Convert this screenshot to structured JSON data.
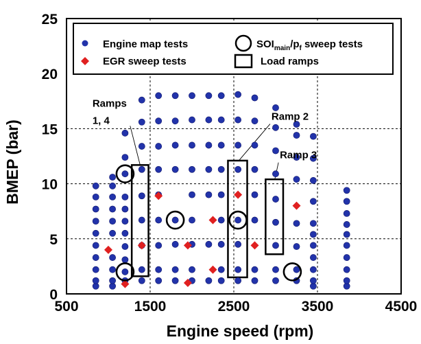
{
  "chart_data": {
    "type": "scatter",
    "title": "",
    "xlabel": "Engine speed (rpm)",
    "ylabel": "BMEP (bar)",
    "xlim": [
      500,
      4500
    ],
    "ylim": [
      0,
      25
    ],
    "x_ticks": [
      "500",
      "1500",
      "2500",
      "3500",
      "4500"
    ],
    "y_ticks": [
      "0",
      "5",
      "10",
      "15",
      "20",
      "25"
    ],
    "grid": "dotted at x=1500, 2500, 3500 and y=5, 10, 15 inside the plot",
    "legend_position": "top",
    "colors": {
      "engine_map": "#2233aa",
      "egr": "#e02020",
      "frame": "#000000"
    },
    "legend": {
      "engine_map": "Engine map tests",
      "egr": "EGR sweep tests",
      "sweep_main": "SOI",
      "sweep_sub": "main",
      "sweep_rest": "/p",
      "sweep_sub2": "f",
      "sweep_tail": " sweep tests",
      "ramps": "Load ramps"
    },
    "series": [
      {
        "name": "Engine map tests",
        "marker": "circle",
        "points": [
          [
            850,
            0.7
          ],
          [
            850,
            1.2
          ],
          [
            850,
            2.2
          ],
          [
            850,
            3.3
          ],
          [
            850,
            4.4
          ],
          [
            850,
            5.5
          ],
          [
            850,
            6.6
          ],
          [
            850,
            7.7
          ],
          [
            850,
            8.8
          ],
          [
            850,
            9.8
          ],
          [
            1050,
            0.7
          ],
          [
            1050,
            1.2
          ],
          [
            1050,
            2.2
          ],
          [
            1050,
            3.3
          ],
          [
            1050,
            5.5
          ],
          [
            1050,
            6.6
          ],
          [
            1050,
            7.7
          ],
          [
            1050,
            8.8
          ],
          [
            1050,
            9.8
          ],
          [
            1050,
            10.6
          ],
          [
            1200,
            1.2
          ],
          [
            1200,
            2.0
          ],
          [
            1200,
            3.1
          ],
          [
            1200,
            4.3
          ],
          [
            1200,
            5.5
          ],
          [
            1200,
            6.6
          ],
          [
            1200,
            7.7
          ],
          [
            1200,
            8.8
          ],
          [
            1200,
            10.9
          ],
          [
            1200,
            12.4
          ],
          [
            1200,
            14.6
          ],
          [
            1400,
            1.2
          ],
          [
            1400,
            2.2
          ],
          [
            1400,
            4.4
          ],
          [
            1400,
            6.7
          ],
          [
            1400,
            8.9
          ],
          [
            1400,
            11.3
          ],
          [
            1400,
            13.4
          ],
          [
            1400,
            15.6
          ],
          [
            1400,
            17.6
          ],
          [
            1600,
            1.2
          ],
          [
            1600,
            2.2
          ],
          [
            1600,
            4.4
          ],
          [
            1600,
            6.7
          ],
          [
            1600,
            9.0
          ],
          [
            1600,
            11.3
          ],
          [
            1600,
            13.4
          ],
          [
            1600,
            15.7
          ],
          [
            1600,
            18.0
          ],
          [
            1800,
            1.2
          ],
          [
            1800,
            2.2
          ],
          [
            1800,
            4.5
          ],
          [
            1800,
            6.7
          ],
          [
            1800,
            11.3
          ],
          [
            1800,
            13.5
          ],
          [
            1800,
            15.7
          ],
          [
            1800,
            18.0
          ],
          [
            2000,
            1.2
          ],
          [
            2000,
            2.2
          ],
          [
            2000,
            4.5
          ],
          [
            2000,
            6.7
          ],
          [
            2000,
            9.0
          ],
          [
            2000,
            11.3
          ],
          [
            2000,
            13.5
          ],
          [
            2000,
            15.8
          ],
          [
            2000,
            18.0
          ],
          [
            2200,
            1.2
          ],
          [
            2200,
            4.5
          ],
          [
            2200,
            9.0
          ],
          [
            2200,
            11.3
          ],
          [
            2200,
            13.5
          ],
          [
            2200,
            15.8
          ],
          [
            2200,
            18.0
          ],
          [
            2350,
            1.2
          ],
          [
            2350,
            2.2
          ],
          [
            2350,
            4.5
          ],
          [
            2350,
            6.7
          ],
          [
            2350,
            9.0
          ],
          [
            2350,
            11.3
          ],
          [
            2350,
            13.5
          ],
          [
            2350,
            15.8
          ],
          [
            2350,
            18.0
          ],
          [
            2550,
            1.2
          ],
          [
            2550,
            2.2
          ],
          [
            2550,
            4.5
          ],
          [
            2550,
            6.7
          ],
          [
            2550,
            11.3
          ],
          [
            2550,
            13.5
          ],
          [
            2550,
            15.8
          ],
          [
            2550,
            18.1
          ],
          [
            2750,
            1.2
          ],
          [
            2750,
            2.2
          ],
          [
            2750,
            6.7
          ],
          [
            2750,
            9.0
          ],
          [
            2750,
            11.3
          ],
          [
            2750,
            13.5
          ],
          [
            2750,
            15.7
          ],
          [
            2750,
            17.8
          ],
          [
            3000,
            1.2
          ],
          [
            3000,
            2.2
          ],
          [
            3000,
            4.4
          ],
          [
            3000,
            6.5
          ],
          [
            3000,
            8.6
          ],
          [
            3000,
            10.9
          ],
          [
            3000,
            13.0
          ],
          [
            3000,
            15.1
          ],
          [
            3000,
            16.9
          ],
          [
            3250,
            1.2
          ],
          [
            3250,
            2.2
          ],
          [
            3250,
            4.3
          ],
          [
            3250,
            6.4
          ],
          [
            3250,
            10.4
          ],
          [
            3250,
            12.4
          ],
          [
            3250,
            14.4
          ],
          [
            3250,
            15.4
          ],
          [
            3450,
            0.7
          ],
          [
            3450,
            1.2
          ],
          [
            3450,
            2.2
          ],
          [
            3450,
            3.3
          ],
          [
            3450,
            4.4
          ],
          [
            3450,
            5.4
          ],
          [
            3450,
            6.4
          ],
          [
            3450,
            8.4
          ],
          [
            3450,
            10.3
          ],
          [
            3450,
            12.3
          ],
          [
            3450,
            14.3
          ],
          [
            3850,
            0.7
          ],
          [
            3850,
            1.2
          ],
          [
            3850,
            2.2
          ],
          [
            3850,
            3.3
          ],
          [
            3850,
            4.4
          ],
          [
            3850,
            5.4
          ],
          [
            3850,
            6.3
          ],
          [
            3850,
            7.3
          ],
          [
            3850,
            8.4
          ],
          [
            3850,
            9.4
          ]
        ]
      },
      {
        "name": "EGR sweep tests",
        "marker": "diamond",
        "points": [
          [
            1000,
            4.0
          ],
          [
            1200,
            0.9
          ],
          [
            1400,
            4.4
          ],
          [
            1600,
            8.9
          ],
          [
            1950,
            1.0
          ],
          [
            1950,
            4.4
          ],
          [
            2250,
            2.2
          ],
          [
            2250,
            6.7
          ],
          [
            2550,
            9.0
          ],
          [
            2750,
            4.4
          ],
          [
            3250,
            8.0
          ]
        ]
      }
    ],
    "sweep_circles": [
      [
        1200,
        10.9
      ],
      [
        1200,
        2.0
      ],
      [
        1800,
        6.7
      ],
      [
        2550,
        6.7
      ],
      [
        3200,
        2.0
      ]
    ],
    "load_ramps": [
      {
        "x": [
          1280,
          1480
        ],
        "y": [
          1.6,
          11.7
        ]
      },
      {
        "x": [
          2430,
          2660
        ],
        "y": [
          1.5,
          12.1
        ]
      },
      {
        "x": [
          2880,
          3090
        ],
        "y": [
          3.6,
          10.4
        ]
      }
    ],
    "annotations": [
      {
        "lines": [
          "Ramps",
          "1, 4"
        ],
        "at": [
          810,
          17.0
        ],
        "arrow_to": [
          1380,
          11.7
        ]
      },
      {
        "lines": [
          "Ramp 2"
        ],
        "at": [
          2950,
          15.8
        ],
        "arrow_to": [
          2560,
          12.1
        ]
      },
      {
        "lines": [
          "Ramp 3"
        ],
        "at": [
          3050,
          12.3
        ],
        "arrow_to": [
          2990,
          10.4
        ]
      }
    ]
  }
}
